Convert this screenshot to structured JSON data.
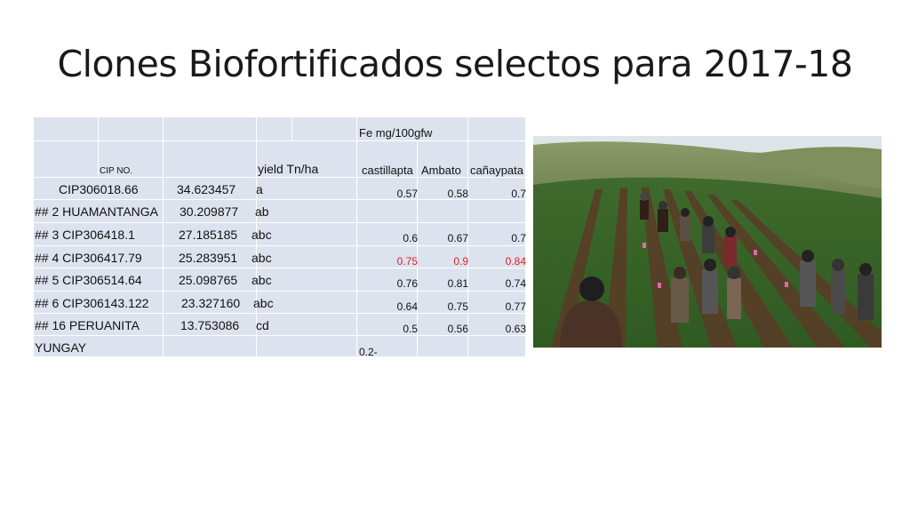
{
  "slide": {
    "title": "Clones Biofortificados selectos para 2017-18"
  },
  "table": {
    "header": {
      "fe_label": "Fe mg/100gfw",
      "cip_label": "CIP NO.",
      "yield_label": "yield Tn/ha",
      "locations": [
        "castillapta",
        "Ambato",
        "cañaypata"
      ]
    },
    "rows": [
      {
        "label": "CIP306018.66",
        "yield": "34.623457",
        "group": "a",
        "values": [
          "0.57",
          "0.58",
          "0.7"
        ],
        "highlight": false
      },
      {
        "label": "## 2  HUAMANTANGA",
        "yield": "30.209877",
        "group": "ab",
        "values": [
          "",
          "",
          ""
        ],
        "highlight": false
      },
      {
        "label": "## 3  CIP306418.1",
        "yield": "27.185185",
        "group": "abc",
        "values": [
          "0.6",
          "0.67",
          "0.7"
        ],
        "highlight": false
      },
      {
        "label": "## 4  CIP306417.79",
        "yield": "25.283951",
        "group": "abc",
        "values": [
          "0.75",
          "0.9",
          "0.84"
        ],
        "highlight": true
      },
      {
        "label": "## 5  CIP306514.64",
        "yield": "25.098765",
        "group": "abc",
        "values": [
          "0.76",
          "0.81",
          "0.74"
        ],
        "highlight": false
      },
      {
        "label": "## 6  CIP306143.122",
        "yield": "23.327160",
        "group": "abc",
        "values": [
          "0.64",
          "0.75",
          "0.77"
        ],
        "highlight": false
      },
      {
        "label": "## 16 PERUANITA",
        "yield": "13.753086",
        "group": "cd",
        "values": [
          "0.5",
          "0.56",
          "0.63"
        ],
        "highlight": false
      },
      {
        "label": "YUNGAY",
        "yield": "",
        "group": "",
        "values": [
          "0.2-",
          "",
          ""
        ],
        "highlight": false
      }
    ],
    "highlight_color": "#e02020",
    "cell_color": "#dde3ee"
  },
  "photo": {
    "subject": "field-trial-photo"
  }
}
